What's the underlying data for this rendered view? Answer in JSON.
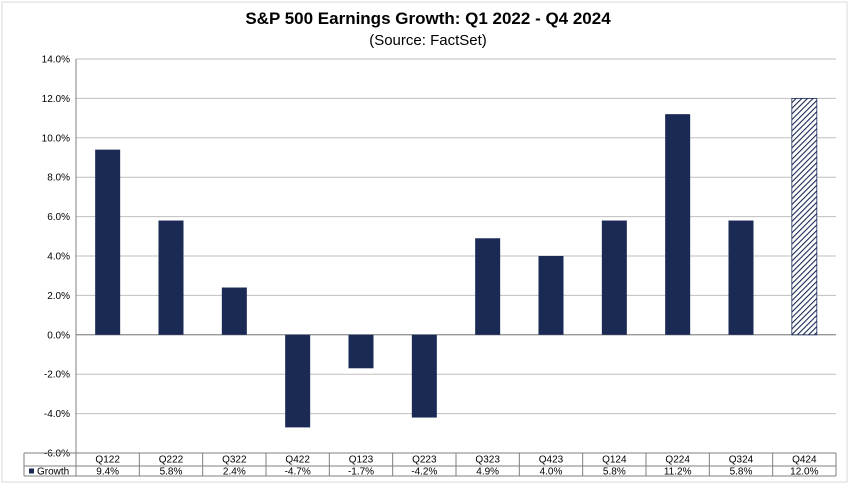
{
  "chart_data": {
    "type": "bar",
    "title": "S&P 500 Earnings Growth: Q1 2022 - Q4 2024",
    "subtitle": "(Source: FactSet)",
    "categories": [
      "Q122",
      "Q222",
      "Q322",
      "Q422",
      "Q123",
      "Q223",
      "Q323",
      "Q423",
      "Q124",
      "Q224",
      "Q324",
      "Q424"
    ],
    "series": [
      {
        "name": "Growth",
        "values": [
          9.4,
          5.8,
          2.4,
          -4.7,
          -1.7,
          -4.2,
          4.9,
          4.0,
          5.8,
          11.2,
          5.8,
          12.0
        ],
        "labels": [
          "9.4%",
          "5.8%",
          "2.4%",
          "-4.7%",
          "-1.7%",
          "-4.2%",
          "4.9%",
          "4.0%",
          "5.8%",
          "11.2%",
          "5.8%",
          "12.0%"
        ],
        "color": "#1a2a55",
        "hatched_last": true
      }
    ],
    "ylim": [
      -6,
      14
    ],
    "yticks": [
      -6,
      -4,
      -2,
      0,
      2,
      4,
      6,
      8,
      10,
      12,
      14
    ],
    "ytick_labels": [
      "-6.0%",
      "-4.0%",
      "-2.0%",
      "0.0%",
      "2.0%",
      "4.0%",
      "6.0%",
      "8.0%",
      "10.0%",
      "12.0%",
      "14.0%"
    ],
    "grid": true,
    "legend": "data-table-left"
  }
}
